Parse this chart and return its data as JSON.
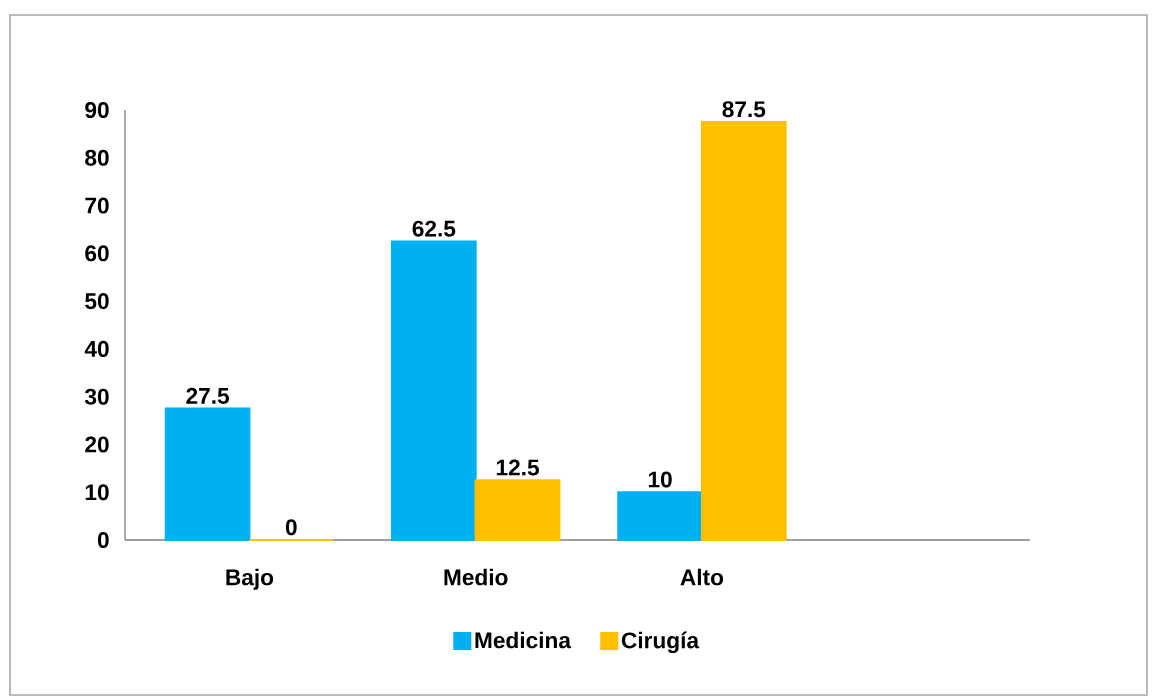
{
  "chart_data": {
    "type": "bar",
    "categories": [
      "Bajo",
      "Medio",
      "Alto"
    ],
    "series": [
      {
        "name": "Medicina",
        "color": "#00b0f0",
        "values": [
          27.5,
          62.5,
          10
        ]
      },
      {
        "name": "Cirugía",
        "color": "#ffc000",
        "values": [
          0,
          12.5,
          87.5
        ]
      }
    ],
    "ylim": [
      0,
      90
    ],
    "yticks": [
      0,
      10,
      20,
      30,
      40,
      50,
      60,
      70,
      80,
      90
    ],
    "data_labels": true,
    "legend": "bottom",
    "grid": false
  }
}
